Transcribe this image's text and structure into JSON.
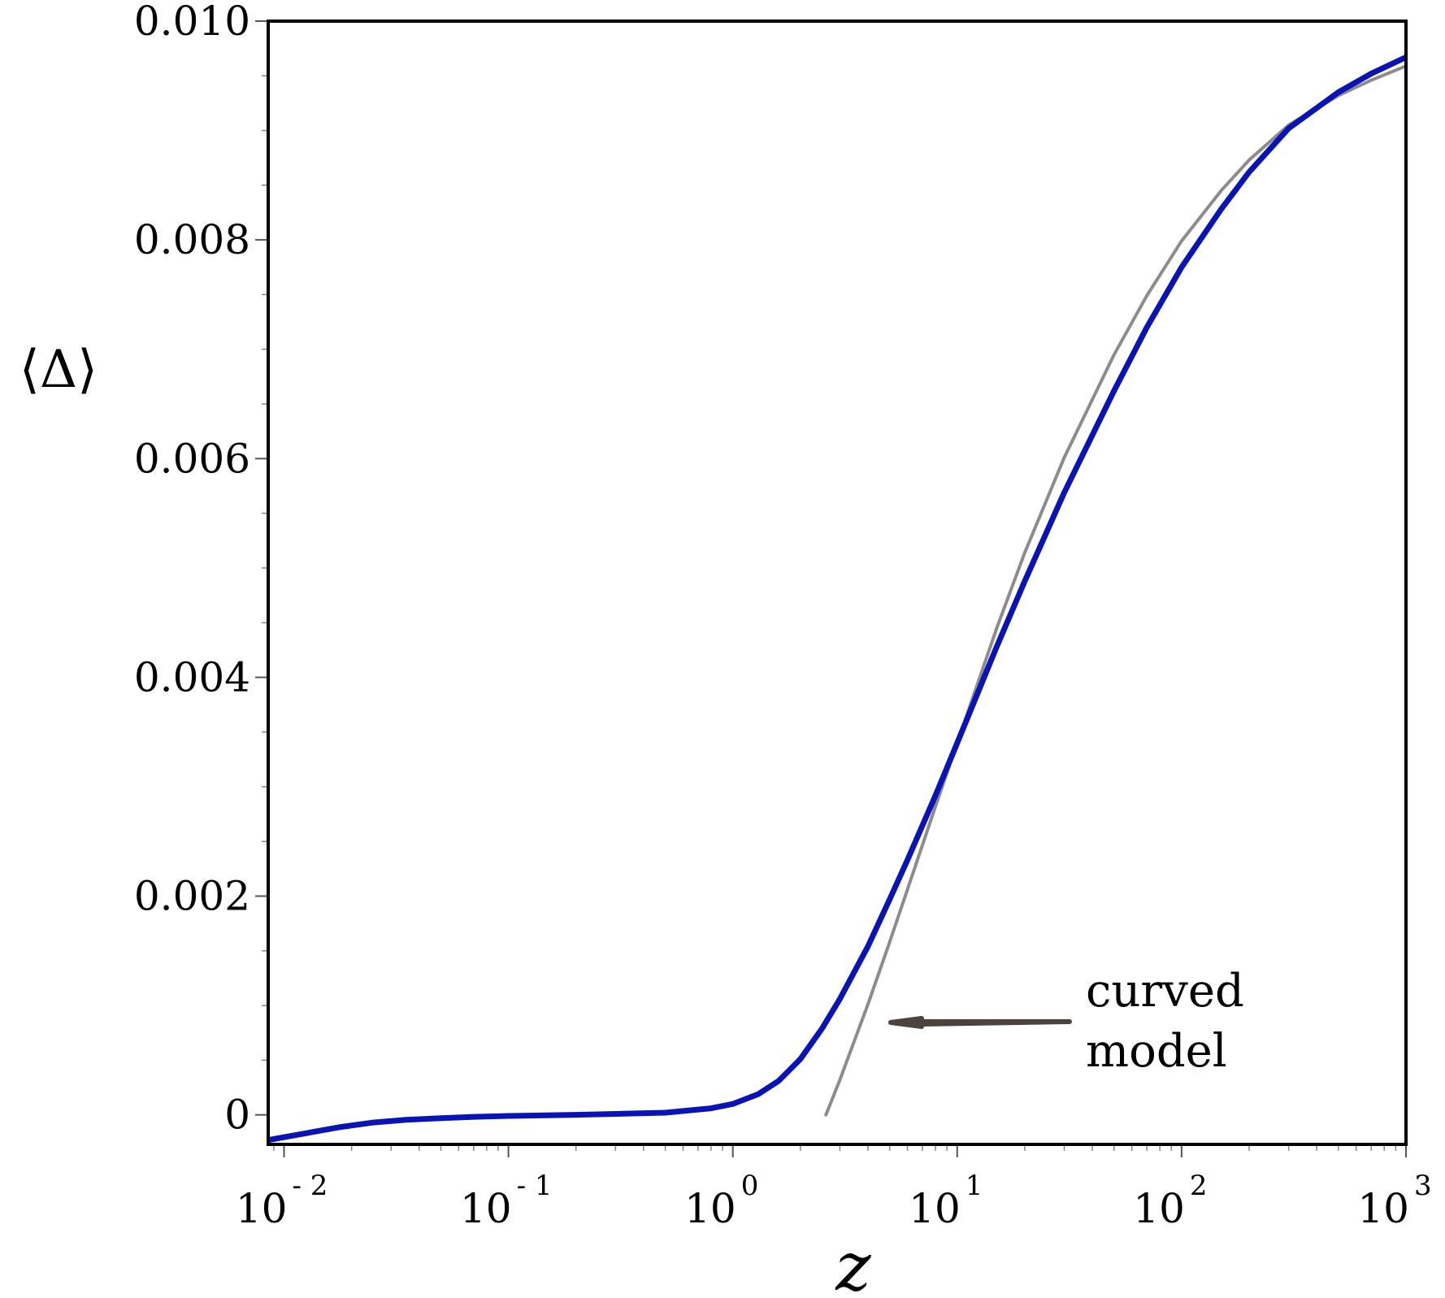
{
  "chart_data": {
    "type": "line",
    "title": "",
    "xlabel": "z",
    "ylabel": "⟨Δ⟩",
    "x_scale": "log",
    "xlim": [
      0.0085,
      1000
    ],
    "ylim": [
      -0.00027,
      0.01
    ],
    "x_ticks": [
      {
        "base": "10",
        "exp": "- 2",
        "value": 0.01
      },
      {
        "base": "10",
        "exp": "- 1",
        "value": 0.1
      },
      {
        "base": "10",
        "exp": "0",
        "value": 1
      },
      {
        "base": "10",
        "exp": "1",
        "value": 10
      },
      {
        "base": "10",
        "exp": "2",
        "value": 100
      },
      {
        "base": "10",
        "exp": "3",
        "value": 1000
      }
    ],
    "y_ticks": [
      {
        "label": "0",
        "value": 0
      },
      {
        "label": "0.002",
        "value": 0.002
      },
      {
        "label": "0.004",
        "value": 0.004
      },
      {
        "label": "0.006",
        "value": 0.006
      },
      {
        "label": "0.008",
        "value": 0.008
      },
      {
        "label": "0.010",
        "value": 0.01
      }
    ],
    "grid": false,
    "series": [
      {
        "color": "#0a14b4",
        "x": [
          0.0085,
          0.018,
          0.025,
          0.035,
          0.05,
          0.07,
          0.1,
          0.2,
          0.5,
          0.8,
          1.0,
          1.3,
          1.6,
          2.0,
          2.5,
          3.0,
          4.0,
          5.0,
          6.0,
          8.0,
          10.0,
          15.0,
          20.0,
          30.0,
          50.0,
          70.0,
          100.0,
          150.0,
          200.0,
          300.0,
          500.0,
          700.0,
          1000.0
        ],
        "y": [
          -0.00023,
          -0.00011,
          -7e-05,
          -4.5e-05,
          -3e-05,
          -1.8e-05,
          -1e-05,
          0.0,
          2e-05,
          6e-05,
          0.0001,
          0.00019,
          0.00031,
          0.00051,
          0.00079,
          0.00106,
          0.00154,
          0.00197,
          0.00233,
          0.00292,
          0.0034,
          0.00428,
          0.00488,
          0.00569,
          0.00662,
          0.0072,
          0.00775,
          0.00828,
          0.00862,
          0.00902,
          0.00935,
          0.00952,
          0.00967
        ]
      },
      {
        "color": "#8c8c8c",
        "x": [
          2.6,
          3.0,
          4.0,
          5.0,
          6.0,
          8.0,
          10.0,
          15.0,
          20.0,
          30.0,
          50.0,
          70.0,
          100.0,
          150.0,
          200.0,
          300.0,
          500.0,
          700.0,
          1000.0
        ],
        "y": [
          0.0,
          0.00032,
          0.00101,
          0.00158,
          0.00206,
          0.00282,
          0.0034,
          0.00445,
          0.00514,
          0.00601,
          0.00695,
          0.00749,
          0.00799,
          0.00845,
          0.00873,
          0.00905,
          0.00932,
          0.00946,
          0.00959
        ]
      }
    ],
    "annotations": [
      {
        "lines": [
          "curved",
          "model"
        ]
      }
    ]
  }
}
